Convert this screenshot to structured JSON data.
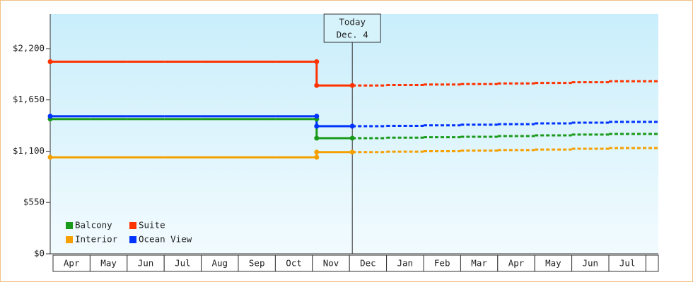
{
  "chart_data": {
    "type": "step",
    "categories": [
      "Apr",
      "May",
      "Jun",
      "Jul",
      "Aug",
      "Sep",
      "Oct",
      "Nov",
      "Dec",
      "Jan",
      "Feb",
      "Mar",
      "Apr",
      "May",
      "Jun",
      "Jul"
    ],
    "series": [
      {
        "name": "Balcony",
        "color": "#1a9a1a",
        "values": [
          1445,
          1445,
          1445,
          1445,
          1445,
          1445,
          1445,
          1240,
          1240,
          1245,
          1250,
          1255,
          1262,
          1270,
          1278,
          1285
        ]
      },
      {
        "name": "Suite",
        "color": "#ff3300",
        "values": [
          2060,
          2060,
          2060,
          2060,
          2060,
          2060,
          2060,
          1805,
          1805,
          1810,
          1815,
          1820,
          1826,
          1832,
          1840,
          1850
        ]
      },
      {
        "name": "Interior",
        "color": "#f5a000",
        "values": [
          1035,
          1035,
          1035,
          1035,
          1035,
          1035,
          1035,
          1090,
          1090,
          1095,
          1100,
          1106,
          1112,
          1118,
          1126,
          1134
        ]
      },
      {
        "name": "Ocean View",
        "color": "#0033ff",
        "values": [
          1475,
          1475,
          1475,
          1475,
          1475,
          1475,
          1475,
          1368,
          1368,
          1372,
          1378,
          1384,
          1390,
          1398,
          1406,
          1414
        ]
      }
    ],
    "ylim": [
      0,
      2570
    ],
    "yticks": [
      {
        "value": 0,
        "label": "$0"
      },
      {
        "value": 550,
        "label": "$550"
      },
      {
        "value": 1100,
        "label": "$1,100"
      },
      {
        "value": 1650,
        "label": "$1,650"
      },
      {
        "value": 2200,
        "label": "$2,200"
      }
    ],
    "annotation": {
      "text": [
        "Today",
        "Dec. 4"
      ],
      "at": "Dec"
    },
    "legend": "lower left"
  }
}
